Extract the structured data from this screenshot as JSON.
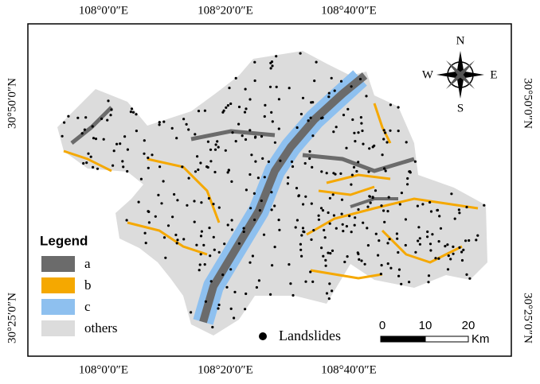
{
  "map": {
    "axes": {
      "top": [
        "108°0′0″E",
        "108°20′0″E",
        "108°40′0″E"
      ],
      "bottom": [
        "108°0′0″E",
        "108°20′0″E",
        "108°40′0″E"
      ],
      "left": [
        "30°50′0″N",
        "30°25′0″N"
      ],
      "right": [
        "30°50′0″N",
        "30°25′0″N"
      ]
    },
    "compass": {
      "n": "N",
      "e": "E",
      "s": "S",
      "w": "W"
    },
    "legend": {
      "title": "Legend",
      "items": [
        {
          "label": "a",
          "color": "#6b6b6b"
        },
        {
          "label": "b",
          "color": "#f5a800"
        },
        {
          "label": "c",
          "color": "#8ec0ef"
        },
        {
          "label": "others",
          "color": "#dcdcdc"
        }
      ]
    },
    "landslides": "Landslides",
    "scale": {
      "ticks": [
        "0",
        "10",
        "20"
      ],
      "unit": "Km"
    }
  }
}
